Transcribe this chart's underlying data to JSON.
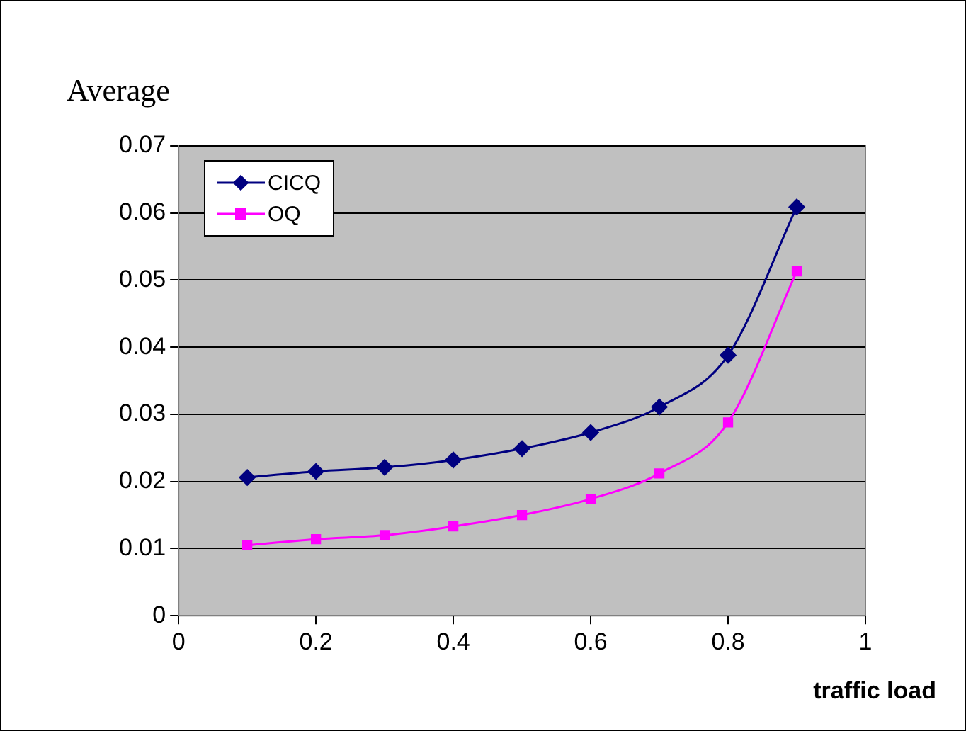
{
  "chart_data": {
    "type": "line",
    "ylabel": "Average",
    "xlabel": "traffic load",
    "x": [
      0.1,
      0.2,
      0.3,
      0.4,
      0.5,
      0.6,
      0.7,
      0.8,
      0.9
    ],
    "series": [
      {
        "name": "CICQ",
        "color": "#000080",
        "marker": "diamond",
        "values": [
          0.0206,
          0.0215,
          0.0221,
          0.0232,
          0.0249,
          0.0273,
          0.0311,
          0.0388,
          0.0609
        ]
      },
      {
        "name": "OQ",
        "color": "#ff00ff",
        "marker": "square",
        "values": [
          0.0105,
          0.0114,
          0.012,
          0.0133,
          0.015,
          0.0174,
          0.0212,
          0.0288,
          0.0513
        ]
      }
    ],
    "xlim": [
      0,
      1
    ],
    "xticks": [
      0,
      0.2,
      0.4,
      0.6,
      0.8,
      1
    ],
    "ylim": [
      0,
      0.07
    ],
    "yticks": [
      0,
      0.01,
      0.02,
      0.03,
      0.04,
      0.05,
      0.06,
      0.07
    ],
    "grid": "y",
    "legend": "top left",
    "line_style": "solid"
  }
}
